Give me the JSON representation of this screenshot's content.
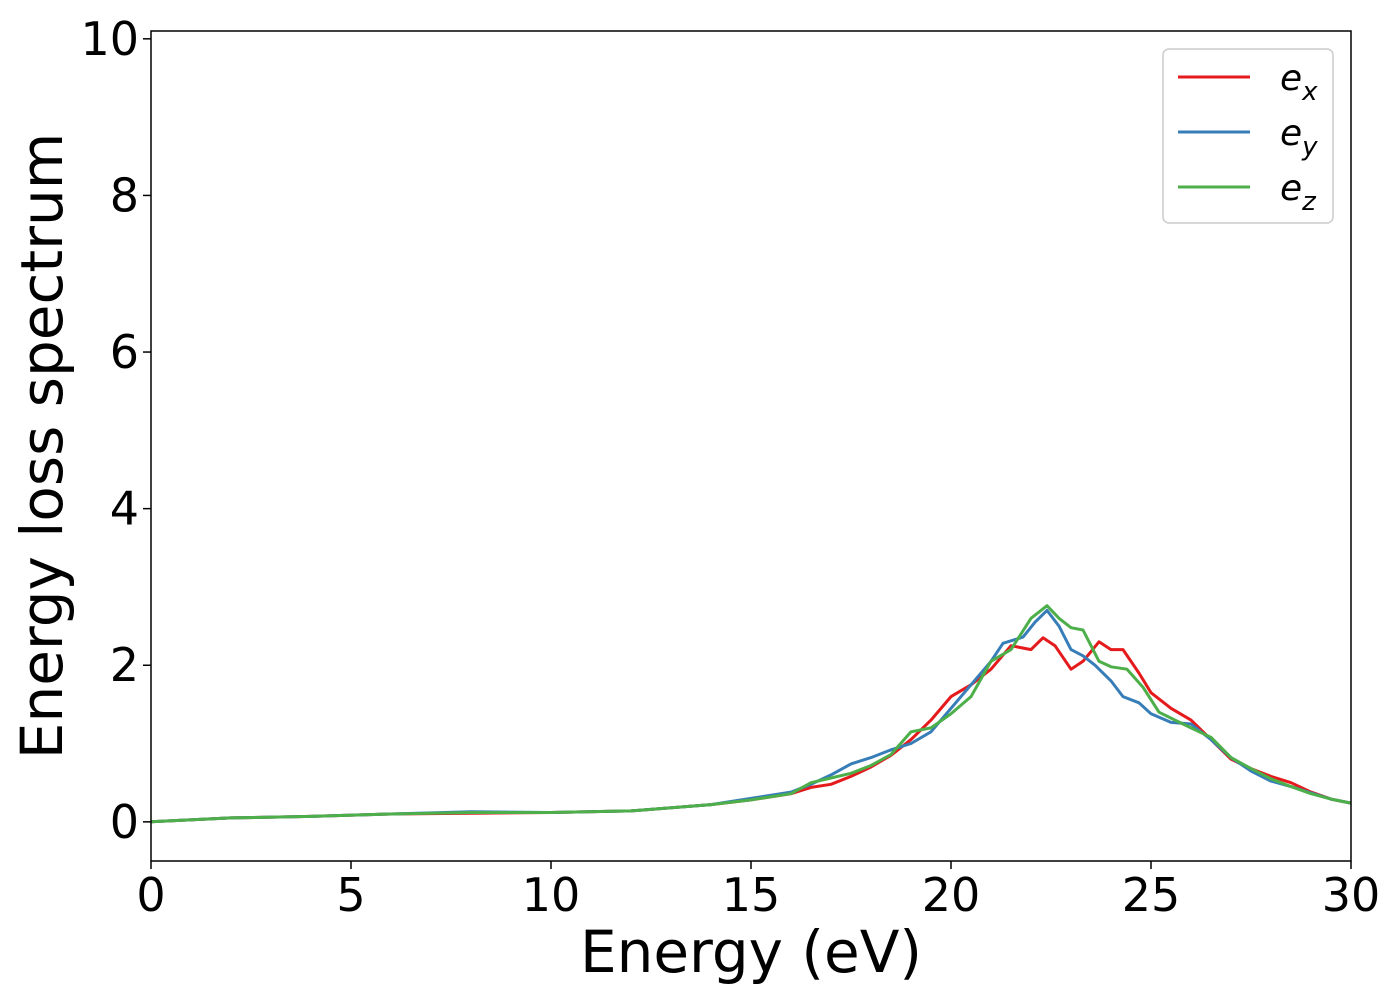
{
  "chart_data": {
    "type": "line",
    "title": "",
    "xlabel": "Energy (eV)",
    "ylabel": "Energy loss spectrum",
    "xlim": [
      0,
      30
    ],
    "ylim": [
      -0.5,
      10.1
    ],
    "x_ticks": [
      0,
      5,
      10,
      15,
      20,
      25,
      30
    ],
    "y_ticks": [
      0,
      2,
      4,
      6,
      8,
      10
    ],
    "grid": false,
    "legend_position": "top-right",
    "series": [
      {
        "name": "e",
        "subscript": "x",
        "color": "#e41a1c",
        "points": [
          [
            0,
            0.0
          ],
          [
            2,
            0.05
          ],
          [
            4,
            0.07
          ],
          [
            6,
            0.1
          ],
          [
            8,
            0.11
          ],
          [
            10,
            0.12
          ],
          [
            12,
            0.14
          ],
          [
            14,
            0.22
          ],
          [
            15,
            0.28
          ],
          [
            16,
            0.36
          ],
          [
            16.5,
            0.44
          ],
          [
            17,
            0.48
          ],
          [
            17.5,
            0.58
          ],
          [
            18,
            0.7
          ],
          [
            18.5,
            0.85
          ],
          [
            19,
            1.05
          ],
          [
            19.5,
            1.3
          ],
          [
            20,
            1.6
          ],
          [
            20.5,
            1.75
          ],
          [
            21,
            1.95
          ],
          [
            21.5,
            2.25
          ],
          [
            22,
            2.2
          ],
          [
            22.3,
            2.35
          ],
          [
            22.6,
            2.25
          ],
          [
            23,
            1.95
          ],
          [
            23.3,
            2.05
          ],
          [
            23.7,
            2.3
          ],
          [
            24,
            2.2
          ],
          [
            24.3,
            2.2
          ],
          [
            24.7,
            1.9
          ],
          [
            25,
            1.65
          ],
          [
            25.5,
            1.45
          ],
          [
            26,
            1.3
          ],
          [
            26.5,
            1.05
          ],
          [
            27,
            0.8
          ],
          [
            27.5,
            0.68
          ],
          [
            28,
            0.58
          ],
          [
            28.5,
            0.5
          ],
          [
            29,
            0.38
          ],
          [
            29.5,
            0.29
          ],
          [
            30,
            0.24
          ]
        ]
      },
      {
        "name": "e",
        "subscript": "y",
        "color": "#377eb8",
        "points": [
          [
            0,
            0.0
          ],
          [
            2,
            0.05
          ],
          [
            4,
            0.07
          ],
          [
            6,
            0.1
          ],
          [
            8,
            0.13
          ],
          [
            10,
            0.12
          ],
          [
            12,
            0.14
          ],
          [
            14,
            0.22
          ],
          [
            15,
            0.3
          ],
          [
            16,
            0.38
          ],
          [
            16.5,
            0.48
          ],
          [
            17,
            0.6
          ],
          [
            17.5,
            0.74
          ],
          [
            18,
            0.82
          ],
          [
            18.5,
            0.92
          ],
          [
            19,
            1.0
          ],
          [
            19.5,
            1.15
          ],
          [
            20,
            1.45
          ],
          [
            20.5,
            1.75
          ],
          [
            21,
            2.05
          ],
          [
            21.3,
            2.28
          ],
          [
            21.8,
            2.36
          ],
          [
            22.1,
            2.55
          ],
          [
            22.4,
            2.7
          ],
          [
            22.7,
            2.5
          ],
          [
            23,
            2.2
          ],
          [
            23.3,
            2.12
          ],
          [
            23.6,
            2.0
          ],
          [
            24,
            1.8
          ],
          [
            24.3,
            1.6
          ],
          [
            24.7,
            1.52
          ],
          [
            25,
            1.38
          ],
          [
            25.5,
            1.27
          ],
          [
            26,
            1.25
          ],
          [
            26.5,
            1.05
          ],
          [
            27,
            0.82
          ],
          [
            27.5,
            0.65
          ],
          [
            28,
            0.52
          ],
          [
            28.5,
            0.45
          ],
          [
            29,
            0.37
          ],
          [
            29.5,
            0.29
          ],
          [
            30,
            0.24
          ]
        ]
      },
      {
        "name": "e",
        "subscript": "z",
        "color": "#4daf4a",
        "points": [
          [
            0,
            0.0
          ],
          [
            2,
            0.05
          ],
          [
            4,
            0.07
          ],
          [
            6,
            0.1
          ],
          [
            8,
            0.12
          ],
          [
            10,
            0.12
          ],
          [
            12,
            0.14
          ],
          [
            14,
            0.22
          ],
          [
            15,
            0.28
          ],
          [
            16,
            0.36
          ],
          [
            16.5,
            0.5
          ],
          [
            17,
            0.56
          ],
          [
            17.5,
            0.62
          ],
          [
            18,
            0.72
          ],
          [
            18.5,
            0.86
          ],
          [
            19,
            1.15
          ],
          [
            19.5,
            1.2
          ],
          [
            20,
            1.38
          ],
          [
            20.5,
            1.6
          ],
          [
            21,
            2.05
          ],
          [
            21.5,
            2.2
          ],
          [
            22,
            2.6
          ],
          [
            22.4,
            2.76
          ],
          [
            22.7,
            2.6
          ],
          [
            23,
            2.48
          ],
          [
            23.3,
            2.45
          ],
          [
            23.7,
            2.05
          ],
          [
            24,
            1.98
          ],
          [
            24.4,
            1.95
          ],
          [
            24.8,
            1.72
          ],
          [
            25.2,
            1.4
          ],
          [
            25.6,
            1.3
          ],
          [
            26,
            1.2
          ],
          [
            26.5,
            1.08
          ],
          [
            27,
            0.82
          ],
          [
            27.5,
            0.68
          ],
          [
            28,
            0.55
          ],
          [
            28.5,
            0.45
          ],
          [
            29,
            0.36
          ],
          [
            29.5,
            0.29
          ],
          [
            30,
            0.24
          ]
        ]
      }
    ]
  }
}
